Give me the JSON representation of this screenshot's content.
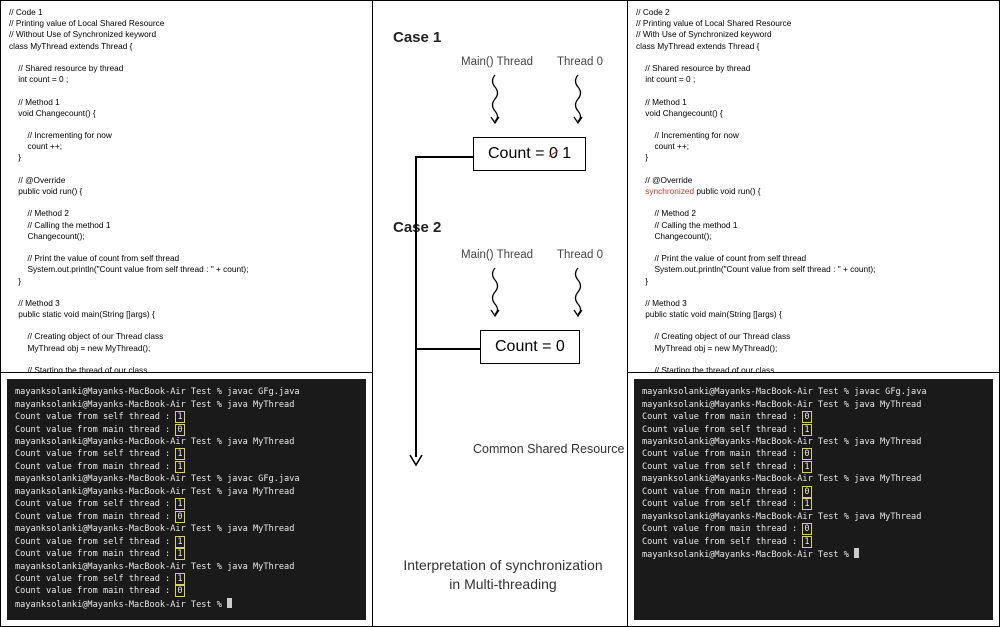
{
  "left": {
    "code": "// Code 1\n// Printing value of Local Shared Resource\n// Without Use of Synchronized keyword\nclass MyThread extends Thread {\n\n    // Shared resource by thread\n    int count = 0 ;\n\n    // Method 1\n    void Changecount() {\n\n        // Incrementing for now\n        count ++;\n    }\n\n    // @Override\n    public void run() {\n\n        // Method 2\n        // Calling the method 1\n        Changecount();\n\n        // Print the value of count from self thread\n        System.out.println(\"Count value from self thread : \" + count);\n    }\n\n    // Method 3\n    public static void main(String []args) {\n\n        // Creating object of our Thread class\n        MyThread obj = new MyThread();\n\n        // Starting the thread of our class\n        obj.start();\n\n        // Print the value of count from main thread\n        System.out.println(\"Count value from main thread : \" + obj.count);\n    }\n}",
    "term": [
      {
        "t": "mayanksolanki@Mayanks-MacBook-Air Test % javac GFg.java"
      },
      {
        "t": "mayanksolanki@Mayanks-MacBook-Air Test % java MyThread"
      },
      {
        "t": "Count value from self thread : ",
        "h": "1"
      },
      {
        "t": "Count value from main thread : ",
        "h": "0"
      },
      {
        "t": "mayanksolanki@Mayanks-MacBook-Air Test % java MyThread"
      },
      {
        "t": "Count value from self thread : ",
        "h": "1"
      },
      {
        "t": "Count value from main thread : ",
        "h": "1"
      },
      {
        "t": "mayanksolanki@Mayanks-MacBook-Air Test % javac GFg.java"
      },
      {
        "t": "mayanksolanki@Mayanks-MacBook-Air Test % java MyThread"
      },
      {
        "t": "Count value from self thread : ",
        "h": "1"
      },
      {
        "t": "Count value from main thread : ",
        "h": "0"
      },
      {
        "t": "mayanksolanki@Mayanks-MacBook-Air Test % java MyThread"
      },
      {
        "t": "Count value from self thread : ",
        "h": "1"
      },
      {
        "t": "Count value from main thread : ",
        "h": "1"
      },
      {
        "t": "mayanksolanki@Mayanks-MacBook-Air Test % java MyThread"
      },
      {
        "t": "Count value from self thread : ",
        "h": "1"
      },
      {
        "t": "Count value from main thread : ",
        "h": "0"
      },
      {
        "t": "mayanksolanki@Mayanks-MacBook-Air Test % ",
        "cursor": true
      }
    ]
  },
  "right": {
    "code_pre": "// Code 2\n// Printing value of Local Shared Resource\n// With Use of Synchronized keyword\nclass MyThread extends Thread {\n\n    // Shared resource by thread\n    int count = 0 ;\n\n    // Method 1\n    void Changecount() {\n\n        // Incrementing for now\n        count ++;\n    }\n\n    // @Override\n    ",
    "code_sync": "synchronized",
    "code_post": " public void run() {\n\n        // Method 2\n        // Calling the method 1\n        Changecount();\n\n        // Print the value of count from self thread\n        System.out.println(\"Count value from self thread : \" + count);\n    }\n\n    // Method 3\n    public static void main(String []args) {\n\n        // Creating object of our Thread class\n        MyThread obj = new MyThread();\n\n        // Starting the thread of our class\n        obj.start();\n\n        // Print the value of count from main thread\n        System.out.println(\"Count value from main thread : \" + obj.count);\n    }\n}",
    "term": [
      {
        "t": "mayanksolanki@Mayanks-MacBook-Air Test % javac GFg.java"
      },
      {
        "t": "mayanksolanki@Mayanks-MacBook-Air Test % java MyThread"
      },
      {
        "t": "Count value from main thread : ",
        "h": "0"
      },
      {
        "t": "Count value from self thread : ",
        "h": "1"
      },
      {
        "t": "mayanksolanki@Mayanks-MacBook-Air Test % java MyThread"
      },
      {
        "t": "Count value from main thread : ",
        "h": "0"
      },
      {
        "t": "Count value from self thread : ",
        "h": "1"
      },
      {
        "t": "mayanksolanki@Mayanks-MacBook-Air Test % java MyThread"
      },
      {
        "t": "Count value from main thread : ",
        "h": "0"
      },
      {
        "t": "Count value from self thread : ",
        "h": "1"
      },
      {
        "t": "mayanksolanki@Mayanks-MacBook-Air Test % java MyThread"
      },
      {
        "t": "Count value from main thread : ",
        "h": "0"
      },
      {
        "t": "Count value from self thread : ",
        "h": "1"
      },
      {
        "t": "mayanksolanki@Mayanks-MacBook-Air Test % ",
        "cursor": true
      }
    ]
  },
  "mid": {
    "case1_label": "Case 1",
    "case2_label": "Case 2",
    "main_thread": "Main() Thread",
    "thread0": "Thread 0",
    "count1_pre": "Count = ",
    "count1_strike": "0",
    "count1_post": "  1",
    "count2": "Count = 0",
    "shared": "Common Shared\nResource",
    "caption": "Interpretation of synchronization\nin Multi-threading",
    "colors": {
      "border": "#000000",
      "text": "#222222",
      "strike": "#bb3333",
      "terminal_bg": "#1a1a1a",
      "terminal_fg": "#e8e8e8"
    }
  }
}
